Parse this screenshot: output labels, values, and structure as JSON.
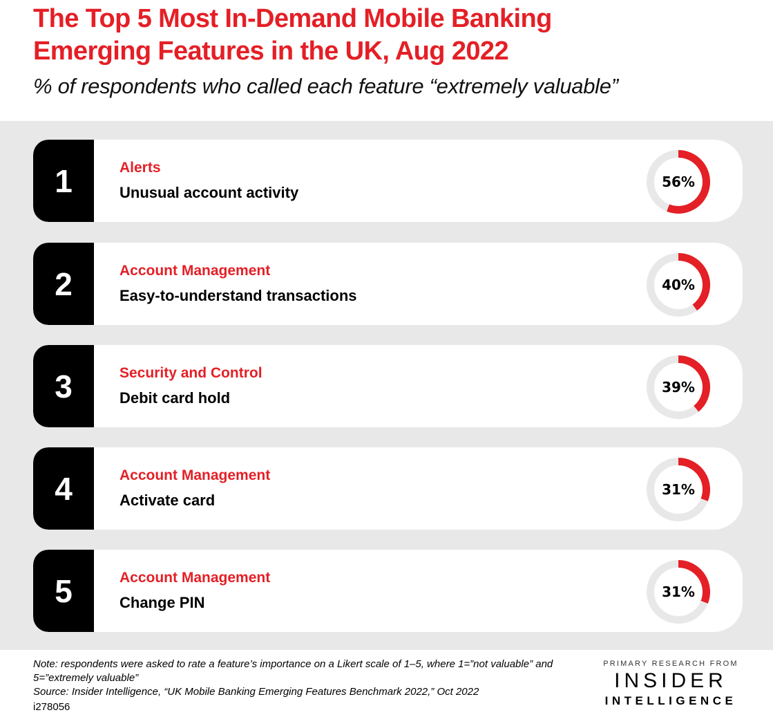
{
  "header": {
    "title_line1": "The Top 5 Most In-Demand Mobile Banking",
    "title_line2": "Emerging Features in the UK, Aug 2022",
    "subtitle": "% of respondents who called each feature “extremely valuable”"
  },
  "colors": {
    "accent": "#E41F26",
    "ring_track": "#E8E8E8",
    "panel_bg": "#E8E8E8",
    "rank_bg": "#000000"
  },
  "chart_data": {
    "type": "donut-list",
    "title": "The Top 5 Most In-Demand Mobile Banking Emerging Features in the UK, Aug 2022",
    "subtitle": "% of respondents who called each feature “extremely valuable”",
    "unit": "%",
    "max": 100,
    "items": [
      {
        "rank": "1",
        "category": "Alerts",
        "feature": "Unusual account activity",
        "value": 56,
        "label": "56%"
      },
      {
        "rank": "2",
        "category": "Account Management",
        "feature": "Easy-to-understand transactions",
        "value": 40,
        "label": "40%"
      },
      {
        "rank": "3",
        "category": "Security and Control",
        "feature": "Debit card hold",
        "value": 39,
        "label": "39%"
      },
      {
        "rank": "4",
        "category": "Account Management",
        "feature": "Activate card",
        "value": 31,
        "label": "31%"
      },
      {
        "rank": "5",
        "category": "Account Management",
        "feature": "Change PIN",
        "value": 31,
        "label": "31%"
      }
    ]
  },
  "footer": {
    "note": "Note: respondents were asked to rate a feature’s importance on a Likert scale of 1–5, where 1=”not valuable” and 5=”extremely valuable”",
    "source": "Source: Insider Intelligence, “UK Mobile Banking Emerging Features Benchmark 2022,” Oct 2022",
    "code": "i278056"
  },
  "brand": {
    "kicker": "PRIMARY RESEARCH FROM",
    "name_line1": "INSIDER",
    "name_line2": "INTELLIGENCE"
  }
}
